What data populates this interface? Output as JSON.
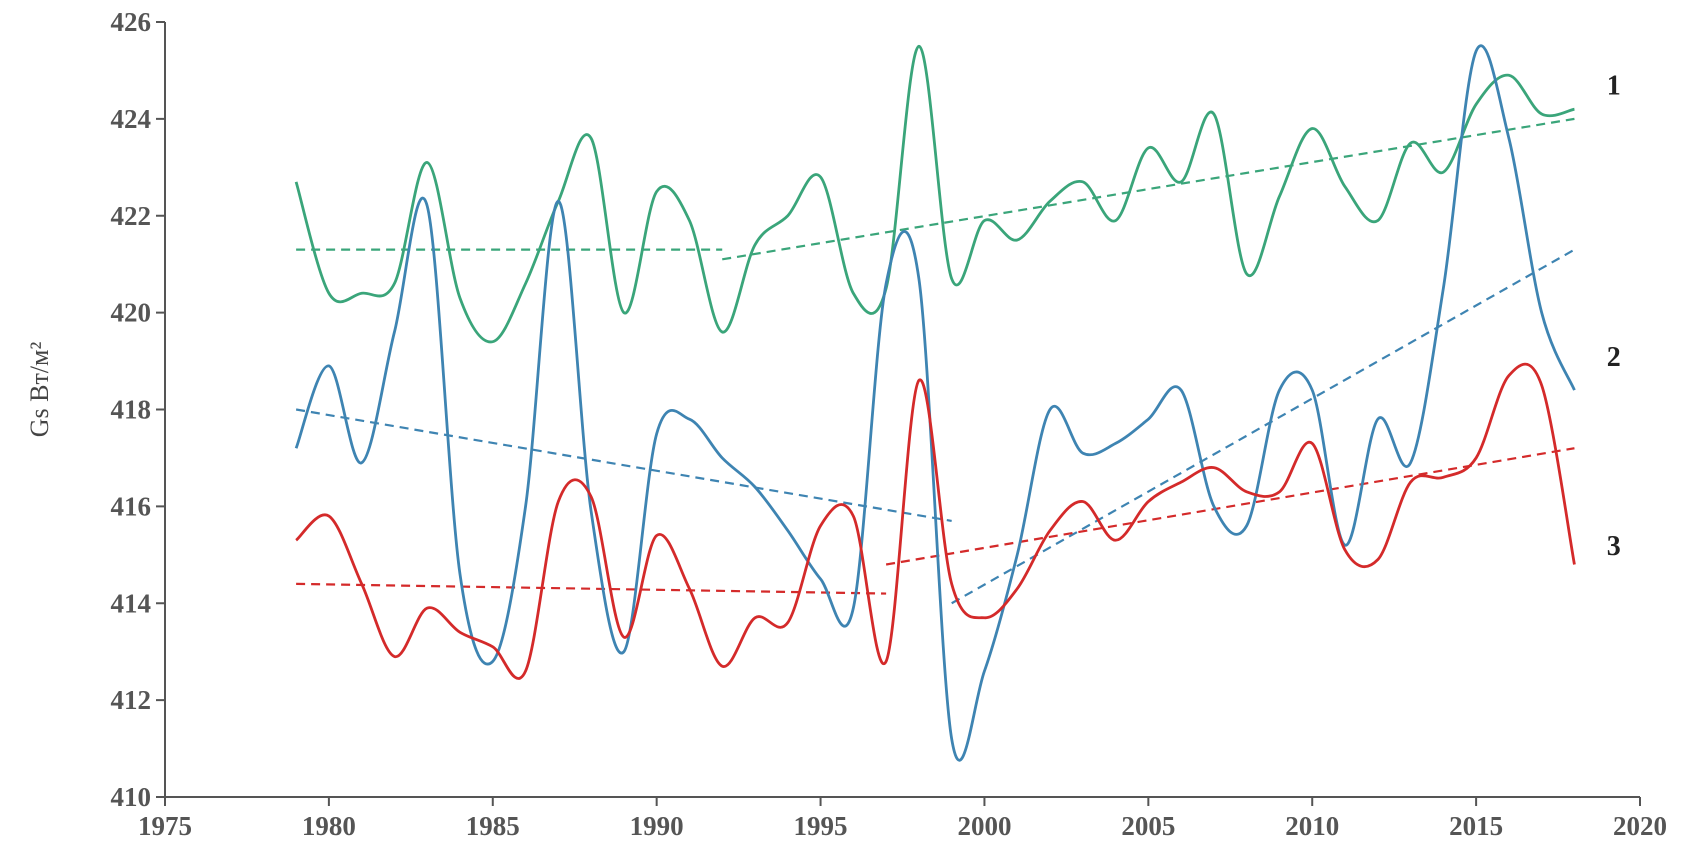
{
  "chart_data": {
    "type": "line",
    "xlim": [
      1975,
      2020
    ],
    "ylim": [
      410,
      426
    ],
    "x_ticks": [
      1975,
      1980,
      1985,
      1990,
      1995,
      2000,
      2005,
      2010,
      2015,
      2020
    ],
    "y_ticks": [
      410,
      412,
      414,
      416,
      418,
      420,
      422,
      424,
      426
    ],
    "x_tick_labels": [
      "1975",
      "1980",
      "1985",
      "1990",
      "1995",
      "2000",
      "2005",
      "2010",
      "2015",
      "2020"
    ],
    "y_tick_labels": [
      "410",
      "412",
      "414",
      "416",
      "418",
      "420",
      "422",
      "424",
      "426"
    ],
    "ylabel": "Gs  Вт/м²",
    "grid": false,
    "legend": "none",
    "series": [
      {
        "name": "1",
        "color": "#3aa57a",
        "x": [
          1979,
          1980,
          1981,
          1982,
          1983,
          1984,
          1985,
          1986,
          1987,
          1988,
          1989,
          1990,
          1991,
          1992,
          1993,
          1994,
          1995,
          1996,
          1997,
          1998,
          1999,
          2000,
          2001,
          2002,
          2003,
          2004,
          2005,
          2006,
          2007,
          2008,
          2009,
          2010,
          2011,
          2012,
          2013,
          2014,
          2015,
          2016,
          2017,
          2018
        ],
        "y": [
          422.7,
          420.4,
          420.4,
          420.6,
          423.1,
          420.3,
          419.4,
          420.6,
          422.3,
          423.6,
          420.0,
          422.5,
          421.9,
          419.6,
          421.4,
          422.0,
          422.8,
          420.4,
          420.5,
          425.5,
          420.7,
          421.9,
          421.5,
          422.3,
          422.7,
          421.9,
          423.4,
          422.7,
          424.1,
          420.8,
          422.4,
          423.8,
          422.6,
          421.9,
          423.5,
          422.9,
          424.3,
          424.9,
          424.1,
          424.2
        ]
      },
      {
        "name": "2",
        "color": "#3e84b2",
        "x": [
          1979,
          1980,
          1981,
          1982,
          1983,
          1984,
          1985,
          1986,
          1987,
          1988,
          1989,
          1990,
          1991,
          1992,
          1993,
          1994,
          1995,
          1996,
          1997,
          1998,
          1999,
          2000,
          2001,
          2002,
          2003,
          2004,
          2005,
          2006,
          2007,
          2008,
          2009,
          2010,
          2011,
          2012,
          2013,
          2014,
          2015,
          2016,
          2017,
          2018
        ],
        "y": [
          417.2,
          418.9,
          416.9,
          419.6,
          422.2,
          414.6,
          412.8,
          416.0,
          422.3,
          415.9,
          413.0,
          417.5,
          417.8,
          417.0,
          416.4,
          415.5,
          414.5,
          413.9,
          420.6,
          420.7,
          411.2,
          412.6,
          415.0,
          418.0,
          417.1,
          417.3,
          417.8,
          418.4,
          416.0,
          415.6,
          418.4,
          418.4,
          415.2,
          417.8,
          416.9,
          420.5,
          425.4,
          423.6,
          420.0,
          418.4
        ]
      },
      {
        "name": "3",
        "color": "#d42a2a",
        "x": [
          1979,
          1980,
          1981,
          1982,
          1983,
          1984,
          1985,
          1986,
          1987,
          1988,
          1989,
          1990,
          1991,
          1992,
          1993,
          1994,
          1995,
          1996,
          1997,
          1998,
          1999,
          2000,
          2001,
          2002,
          2003,
          2004,
          2005,
          2006,
          2007,
          2008,
          2009,
          2010,
          2011,
          2012,
          2013,
          2014,
          2015,
          2016,
          2017,
          2018
        ],
        "y": [
          415.3,
          415.8,
          414.4,
          412.9,
          413.9,
          413.4,
          413.1,
          412.6,
          416.1,
          416.2,
          413.3,
          415.4,
          414.3,
          412.7,
          413.7,
          413.6,
          415.6,
          415.8,
          412.8,
          418.6,
          414.4,
          413.7,
          414.3,
          415.5,
          416.1,
          415.3,
          416.1,
          416.5,
          416.8,
          416.3,
          416.3,
          417.3,
          415.1,
          414.9,
          416.5,
          416.6,
          417.0,
          418.7,
          418.5,
          414.8
        ]
      }
    ],
    "trend_lines": [
      {
        "series": "1",
        "color": "#3aa57a",
        "points": [
          [
            1979,
            421.3
          ],
          [
            1992,
            421.3
          ]
        ]
      },
      {
        "series": "1",
        "color": "#3aa57a",
        "points": [
          [
            1992,
            421.1
          ],
          [
            2018,
            424.0
          ]
        ]
      },
      {
        "series": "2",
        "color": "#3e84b2",
        "points": [
          [
            1979,
            418.0
          ],
          [
            1999,
            415.7
          ]
        ]
      },
      {
        "series": "2",
        "color": "#3e84b2",
        "points": [
          [
            1999,
            414.0
          ],
          [
            2018,
            421.3
          ]
        ]
      },
      {
        "series": "3",
        "color": "#d42a2a",
        "points": [
          [
            1979,
            414.4
          ],
          [
            1997,
            414.2
          ]
        ]
      },
      {
        "series": "3",
        "color": "#d42a2a",
        "points": [
          [
            1997,
            414.8
          ],
          [
            2018,
            417.2
          ]
        ]
      }
    ],
    "series_labels": [
      {
        "text": "1",
        "series": "1",
        "at": [
          2019.2,
          424.5
        ]
      },
      {
        "text": "2",
        "series": "2",
        "at": [
          2019.2,
          418.9
        ]
      },
      {
        "text": "3",
        "series": "3",
        "at": [
          2019.2,
          415.0
        ]
      }
    ]
  }
}
